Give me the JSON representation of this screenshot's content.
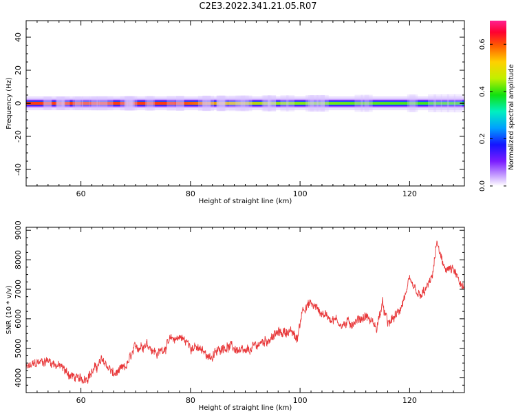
{
  "title": "C2E3.2022.341.21.05.R07",
  "chart_data": [
    {
      "type": "heatmap",
      "xlabel": "Height of straight line (km)",
      "ylabel": "Frequency (Hz)",
      "xlim": [
        50,
        130
      ],
      "ylim": [
        -50,
        50
      ],
      "xticks": [
        60,
        80,
        100,
        120
      ],
      "yticks": [
        -40,
        -20,
        0,
        20,
        40
      ],
      "band": {
        "center_hz": 0,
        "half_width_hz": 3,
        "description_points_x": [
          50,
          60,
          70,
          75,
          80,
          85,
          90,
          100,
          110,
          120,
          130
        ],
        "peak_amplitude": [
          0.62,
          0.64,
          0.63,
          0.6,
          0.5,
          0.45,
          0.42,
          0.4,
          0.38,
          0.37,
          0.36
        ]
      },
      "colorbar": {
        "label": "Normalized spectral amplitude",
        "ticks": [
          0.0,
          0.2,
          0.4,
          0.6
        ],
        "range": [
          0,
          0.7
        ],
        "colormap": "gist_ncar-like (white, violet, blue, cyan, green, yellow, orange, red, magenta)"
      }
    },
    {
      "type": "line",
      "xlabel": "Height of straight line (km)",
      "ylabel": "SNR (10 * v/v)",
      "xlim": [
        50,
        130
      ],
      "ylim": [
        3500,
        9100
      ],
      "xticks": [
        60,
        80,
        100,
        120
      ],
      "yticks": [
        4000,
        5000,
        6000,
        7000,
        8000,
        9000
      ],
      "color": "#e8383a",
      "x": [
        50,
        52,
        54,
        56,
        58,
        60,
        62,
        64,
        66,
        68,
        70,
        72,
        74,
        76,
        78,
        80,
        82,
        84,
        86,
        88,
        90,
        92,
        94,
        96,
        98,
        99.5,
        100.5,
        102,
        104,
        106,
        108,
        110,
        112,
        114,
        115,
        116,
        118,
        120,
        122,
        124,
        125,
        126,
        128,
        130
      ],
      "y": [
        4300,
        4500,
        4600,
        4400,
        4100,
        3900,
        4200,
        4600,
        4100,
        4300,
        5000,
        5200,
        4800,
        5200,
        5400,
        5100,
        4900,
        4700,
        5100,
        5000,
        4800,
        5100,
        5300,
        5500,
        5600,
        5300,
        6400,
        6500,
        6200,
        6000,
        5800,
        5900,
        6100,
        5700,
        6500,
        5800,
        6200,
        7200,
        6700,
        7300,
        8600,
        7800,
        7600,
        6900
      ]
    }
  ]
}
